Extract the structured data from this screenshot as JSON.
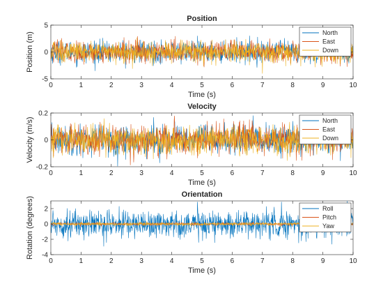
{
  "chart_data": [
    {
      "type": "line",
      "title": "Position",
      "xlabel": "Time (s)",
      "ylabel": "Position (m)",
      "xlim": [
        0,
        10
      ],
      "ylim": [
        -5,
        5
      ],
      "xticks": [
        0,
        1,
        2,
        3,
        4,
        5,
        6,
        7,
        8,
        9,
        10
      ],
      "yticks": [
        -5,
        0,
        5
      ],
      "legend_position": "top-right",
      "grid": false,
      "series": [
        {
          "name": "North",
          "color": "#0072BD",
          "amplitude": 1.0,
          "x_range": [
            0,
            10
          ]
        },
        {
          "name": "East",
          "color": "#D95319",
          "amplitude": 1.0,
          "x_range": [
            0,
            10
          ]
        },
        {
          "name": "Down",
          "color": "#EDB120",
          "amplitude": 1.0,
          "x_range": [
            0,
            10
          ]
        }
      ]
    },
    {
      "type": "line",
      "title": "Velocity",
      "xlabel": "Time (s)",
      "ylabel": "Velocity (m/s)",
      "xlim": [
        0,
        10
      ],
      "ylim": [
        -0.2,
        0.2
      ],
      "xticks": [
        0,
        1,
        2,
        3,
        4,
        5,
        6,
        7,
        8,
        9,
        10
      ],
      "yticks": [
        -0.2,
        0,
        0.2
      ],
      "legend_position": "top-right",
      "grid": false,
      "series": [
        {
          "name": "North",
          "color": "#0072BD",
          "amplitude": 0.055,
          "x_range": [
            0,
            10
          ]
        },
        {
          "name": "East",
          "color": "#D95319",
          "amplitude": 0.055,
          "x_range": [
            0,
            10
          ]
        },
        {
          "name": "Down",
          "color": "#EDB120",
          "amplitude": 0.055,
          "x_range": [
            0,
            10
          ]
        }
      ]
    },
    {
      "type": "line",
      "title": "Orientation",
      "xlabel": "Time (s)",
      "ylabel": "Rotation (degrees)",
      "xlim": [
        0,
        10
      ],
      "ylim": [
        -4,
        3
      ],
      "xticks": [
        0,
        1,
        2,
        3,
        4,
        5,
        6,
        7,
        8,
        9,
        10
      ],
      "yticks": [
        -4,
        -2,
        0,
        2
      ],
      "legend_position": "top-right",
      "grid": false,
      "series": [
        {
          "name": "Roll",
          "color": "#0072BD",
          "amplitude": 0.9,
          "x_range": [
            0,
            10
          ]
        },
        {
          "name": "Pitch",
          "color": "#D95319",
          "amplitude": 0.1,
          "x_range": [
            0,
            10
          ]
        },
        {
          "name": "Yaw",
          "color": "#EDB120",
          "amplitude": 0.1,
          "x_range": [
            0,
            10
          ]
        }
      ]
    }
  ]
}
